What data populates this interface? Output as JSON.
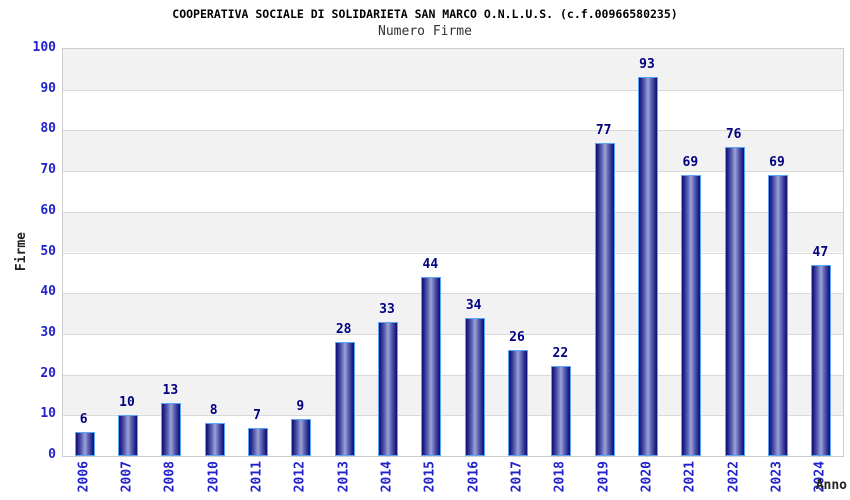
{
  "chart_data": {
    "type": "bar",
    "title": "COOPERATIVA SOCIALE DI SOLIDARIETA SAN MARCO O.N.L.U.S. (c.f.00966580235)",
    "subtitle": "Numero Firme",
    "xlabel": "Anno",
    "ylabel": "Firme",
    "categories": [
      "2006",
      "2007",
      "2008",
      "2010",
      "2011",
      "2012",
      "2013",
      "2014",
      "2015",
      "2016",
      "2017",
      "2018",
      "2019",
      "2020",
      "2021",
      "2022",
      "2023",
      "2024"
    ],
    "values": [
      6,
      10,
      13,
      8,
      7,
      9,
      28,
      33,
      44,
      34,
      26,
      22,
      77,
      93,
      69,
      76,
      69,
      47
    ],
    "ylim": [
      0,
      100
    ],
    "ytick_step": 10,
    "grid": "horizontal-only",
    "legend": "none",
    "bar_value_labels_shown": true
  },
  "style": {
    "tick_label_color": "#2222cc",
    "value_label_color": "#000080",
    "band_color": "#f2f2f2",
    "grid_color": "#d9d9d9",
    "bar_border_color": "#58a6f5",
    "bar_gradient_dark": "#16167e",
    "bar_gradient_mid": "#5d64b4",
    "bar_gradient_light": "#9ba1d8"
  }
}
